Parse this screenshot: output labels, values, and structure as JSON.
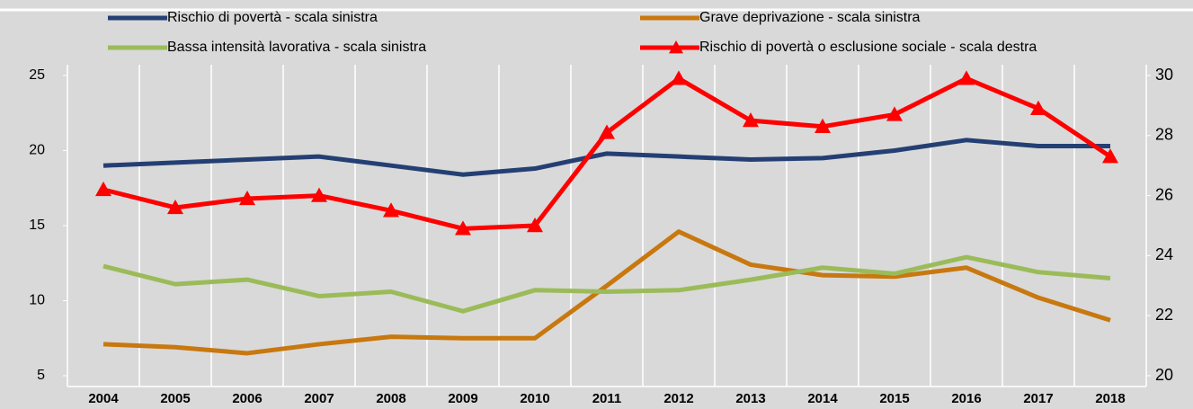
{
  "chart_data": {
    "type": "line",
    "categories": [
      "2004",
      "2005",
      "2006",
      "2007",
      "2008",
      "2009",
      "2010",
      "2011",
      "2012",
      "2013",
      "2014",
      "2015",
      "2016",
      "2017",
      "2018"
    ],
    "series": [
      {
        "name": "Rischio di povertà  - scala sinistra",
        "color": "#243f73",
        "values": [
          19.0,
          19.2,
          19.4,
          19.6,
          19.0,
          18.4,
          18.8,
          19.8,
          19.6,
          19.4,
          19.5,
          20.0,
          20.7,
          20.3,
          20.3
        ]
      },
      {
        "name": "Grave deprivazione  - scala sinistra",
        "color": "#c8780f",
        "values": [
          7.1,
          6.9,
          6.5,
          7.1,
          7.6,
          7.5,
          7.5,
          11.0,
          14.6,
          12.4,
          11.7,
          11.6,
          12.2,
          10.2,
          8.7
        ]
      },
      {
        "name": "Bassa intensità lavorativa - scala sinistra",
        "color": "#9bbb59",
        "values": [
          12.3,
          11.1,
          11.4,
          10.3,
          10.6,
          9.3,
          10.7,
          10.6,
          10.7,
          11.4,
          12.2,
          11.8,
          12.9,
          11.9,
          11.5
        ]
      },
      {
        "name": "Rischio di povertà o esclusione sociale - scala destra",
        "color": "#ff0000",
        "axis": "y2",
        "marker": "triangle",
        "values": [
          26.2,
          25.6,
          25.9,
          26.0,
          25.5,
          24.9,
          25.0,
          28.1,
          29.9,
          28.5,
          28.3,
          28.7,
          29.9,
          28.9,
          27.3
        ]
      }
    ],
    "ylim": [
      5,
      25
    ],
    "yticks": [
      5,
      10,
      15,
      20,
      25
    ],
    "y2lim": [
      20,
      30
    ],
    "y2ticks": [
      20,
      22,
      24,
      26,
      28,
      30
    ],
    "grid": true
  }
}
